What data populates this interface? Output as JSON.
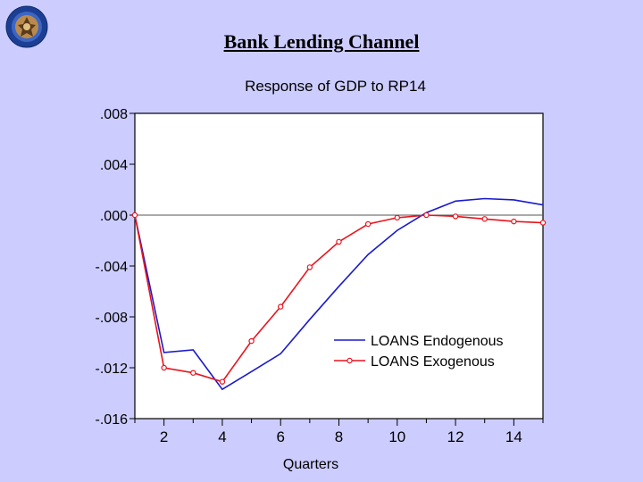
{
  "slide": {
    "title": "Bank Lending Channel",
    "logo_icon": "seal-logo-icon"
  },
  "chart_data": {
    "type": "line",
    "title": "Response of GDP to RP14",
    "xlabel": "Quarters",
    "ylabel": "",
    "xlim": [
      1,
      15
    ],
    "ylim": [
      -0.016,
      0.008
    ],
    "yticks": [
      0.008,
      0.004,
      0.0,
      -0.004,
      -0.008,
      -0.012,
      -0.016
    ],
    "ytick_labels": [
      ".008",
      ".004",
      ".000",
      "-.004",
      "-.008",
      "-.012",
      "-.016"
    ],
    "xticks": [
      2,
      4,
      6,
      8,
      10,
      12,
      14
    ],
    "xtick_labels": [
      "2",
      "4",
      "6",
      "8",
      "10",
      "12",
      "14"
    ],
    "zero_line": true,
    "grid": false,
    "legend_position": "lower-right",
    "x": [
      1,
      2,
      3,
      4,
      5,
      6,
      7,
      8,
      9,
      10,
      11,
      12,
      13,
      14,
      15
    ],
    "series": [
      {
        "name": "LOANS Endogenous",
        "color": "#1a1acc",
        "markers": false,
        "values": [
          0.0,
          -0.0108,
          -0.0106,
          -0.0137,
          -0.0123,
          -0.0109,
          -0.0082,
          -0.0056,
          -0.0031,
          -0.0012,
          0.0002,
          0.0011,
          0.0013,
          0.0012,
          0.0008
        ]
      },
      {
        "name": "LOANS Exogenous",
        "color": "#e8141e",
        "markers": true,
        "values": [
          0.0,
          -0.012,
          -0.0124,
          -0.0131,
          -0.0099,
          -0.0072,
          -0.0041,
          -0.0021,
          -0.0007,
          -0.0002,
          0.0,
          -0.0001,
          -0.0003,
          -0.0005,
          -0.0006
        ]
      }
    ]
  }
}
